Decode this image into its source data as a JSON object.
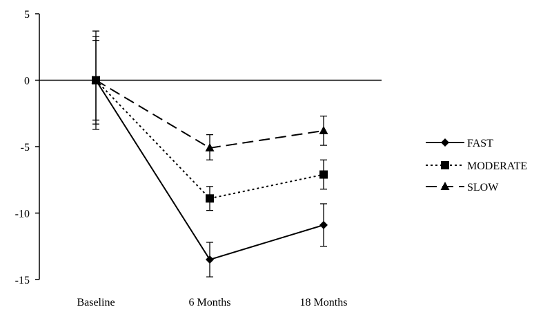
{
  "chart_data": {
    "type": "line",
    "categories": [
      "Baseline",
      "6 Months",
      "18 Months"
    ],
    "ylim": [
      -15,
      5
    ],
    "yticks": [
      5,
      0,
      -5,
      -10,
      -15
    ],
    "legend_position": "right",
    "series": [
      {
        "name": "FAST",
        "values": [
          0,
          -13.5,
          -10.9
        ],
        "error_low": [
          -3.7,
          -14.8,
          -12.5
        ],
        "error_high": [
          3.7,
          -12.2,
          -9.3
        ],
        "line_style": "solid",
        "marker": "diamond"
      },
      {
        "name": "MODERATE",
        "values": [
          0,
          -8.9,
          -7.1
        ],
        "error_low": [
          -3.3,
          -9.8,
          -8.2
        ],
        "error_high": [
          3.3,
          -8.0,
          -6.0
        ],
        "line_style": "dotted",
        "marker": "square"
      },
      {
        "name": "SLOW",
        "values": [
          0,
          -5.1,
          -3.8
        ],
        "error_low": [
          -3.0,
          -6.0,
          -4.9
        ],
        "error_high": [
          3.0,
          -4.1,
          -2.7
        ],
        "line_style": "dashed",
        "marker": "triangle"
      }
    ]
  }
}
